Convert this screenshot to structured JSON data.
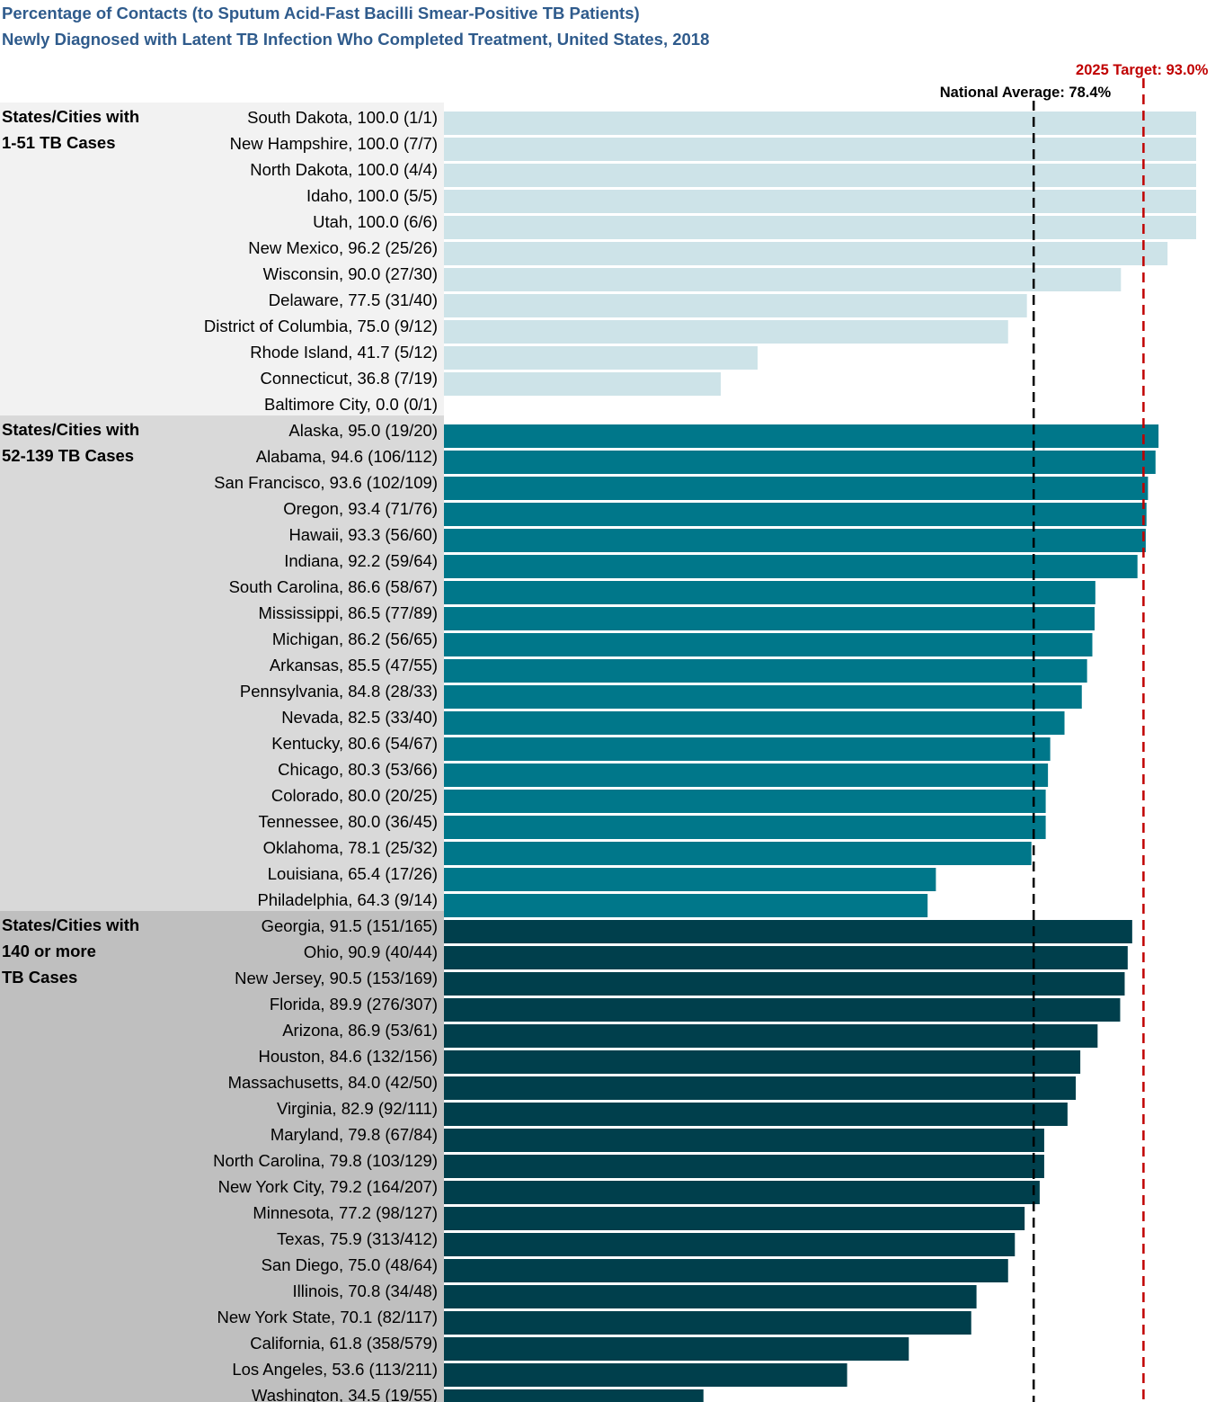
{
  "title_line1": "Percentage of Contacts (to Sputum Acid-Fast Bacilli Smear-Positive TB Patients)",
  "title_line2": "Newly Diagnosed with Latent TB Infection Who Completed Treatment, United States, 2018",
  "colors": {
    "group1": "#cde3e8",
    "group2": "#00778a",
    "group3": "#003f4c",
    "panel1": "#f2f2f2",
    "panel2": "#d9d9d9",
    "panel3": "#bfbfbf",
    "national": "#000000",
    "target": "#c00000"
  },
  "chart_data": {
    "type": "bar",
    "orientation": "horizontal",
    "title": "Percentage of Contacts (to Sputum Acid-Fast Bacilli Smear-Positive TB Patients) Newly Diagnosed with Latent TB Infection Who Completed Treatment, United States, 2018",
    "xlabel": "",
    "ylabel": "",
    "xlim": [
      0,
      100
    ],
    "reference_lines": [
      {
        "label": "National Average: 78.4%",
        "value": 78.4,
        "color": "#000000"
      },
      {
        "label": "2025 Target: 93.0%",
        "value": 93.0,
        "color": "#c00000"
      }
    ],
    "groups": [
      {
        "label_lines": [
          "States/Cities with",
          "1-51 TB Cases"
        ],
        "items": [
          {
            "name": "South Dakota",
            "value": 100.0,
            "fraction": "1/1"
          },
          {
            "name": "New Hampshire",
            "value": 100.0,
            "fraction": "7/7"
          },
          {
            "name": "North Dakota",
            "value": 100.0,
            "fraction": "4/4"
          },
          {
            "name": "Idaho",
            "value": 100.0,
            "fraction": "5/5"
          },
          {
            "name": "Utah",
            "value": 100.0,
            "fraction": "6/6"
          },
          {
            "name": "New Mexico",
            "value": 96.2,
            "fraction": "25/26"
          },
          {
            "name": "Wisconsin",
            "value": 90.0,
            "fraction": "27/30"
          },
          {
            "name": "Delaware",
            "value": 77.5,
            "fraction": "31/40"
          },
          {
            "name": "District of Columbia",
            "value": 75.0,
            "fraction": "9/12"
          },
          {
            "name": "Rhode Island",
            "value": 41.7,
            "fraction": "5/12"
          },
          {
            "name": "Connecticut",
            "value": 36.8,
            "fraction": "7/19"
          },
          {
            "name": "Baltimore City",
            "value": 0.0,
            "fraction": "0/1"
          }
        ]
      },
      {
        "label_lines": [
          "States/Cities with",
          "52-139 TB Cases"
        ],
        "items": [
          {
            "name": "Alaska",
            "value": 95.0,
            "fraction": "19/20"
          },
          {
            "name": "Alabama",
            "value": 94.6,
            "fraction": "106/112"
          },
          {
            "name": "San Francisco",
            "value": 93.6,
            "fraction": "102/109"
          },
          {
            "name": "Oregon",
            "value": 93.4,
            "fraction": "71/76"
          },
          {
            "name": "Hawaii",
            "value": 93.3,
            "fraction": "56/60"
          },
          {
            "name": "Indiana",
            "value": 92.2,
            "fraction": "59/64"
          },
          {
            "name": "South Carolina",
            "value": 86.6,
            "fraction": "58/67"
          },
          {
            "name": "Mississippi",
            "value": 86.5,
            "fraction": "77/89"
          },
          {
            "name": "Michigan",
            "value": 86.2,
            "fraction": "56/65"
          },
          {
            "name": "Arkansas",
            "value": 85.5,
            "fraction": "47/55"
          },
          {
            "name": "Pennsylvania",
            "value": 84.8,
            "fraction": "28/33"
          },
          {
            "name": "Nevada",
            "value": 82.5,
            "fraction": "33/40"
          },
          {
            "name": "Kentucky",
            "value": 80.6,
            "fraction": "54/67"
          },
          {
            "name": "Chicago",
            "value": 80.3,
            "fraction": "53/66"
          },
          {
            "name": "Colorado",
            "value": 80.0,
            "fraction": "20/25"
          },
          {
            "name": "Tennessee",
            "value": 80.0,
            "fraction": "36/45"
          },
          {
            "name": "Oklahoma",
            "value": 78.1,
            "fraction": "25/32"
          },
          {
            "name": "Louisiana",
            "value": 65.4,
            "fraction": "17/26"
          },
          {
            "name": "Philadelphia",
            "value": 64.3,
            "fraction": "9/14"
          }
        ]
      },
      {
        "label_lines": [
          "States/Cities with",
          "140 or more",
          "TB Cases"
        ],
        "items": [
          {
            "name": "Georgia",
            "value": 91.5,
            "fraction": "151/165"
          },
          {
            "name": "Ohio",
            "value": 90.9,
            "fraction": "40/44"
          },
          {
            "name": "New Jersey",
            "value": 90.5,
            "fraction": "153/169"
          },
          {
            "name": "Florida",
            "value": 89.9,
            "fraction": "276/307"
          },
          {
            "name": "Arizona",
            "value": 86.9,
            "fraction": "53/61"
          },
          {
            "name": "Houston",
            "value": 84.6,
            "fraction": "132/156"
          },
          {
            "name": "Massachusetts",
            "value": 84.0,
            "fraction": "42/50"
          },
          {
            "name": "Virginia",
            "value": 82.9,
            "fraction": "92/111"
          },
          {
            "name": "Maryland",
            "value": 79.8,
            "fraction": "67/84"
          },
          {
            "name": "North Carolina",
            "value": 79.8,
            "fraction": "103/129"
          },
          {
            "name": "New York City",
            "value": 79.2,
            "fraction": "164/207"
          },
          {
            "name": "Minnesota",
            "value": 77.2,
            "fraction": "98/127"
          },
          {
            "name": "Texas",
            "value": 75.9,
            "fraction": "313/412"
          },
          {
            "name": "San Diego",
            "value": 75.0,
            "fraction": "48/64"
          },
          {
            "name": "Illinois",
            "value": 70.8,
            "fraction": "34/48"
          },
          {
            "name": "New York State",
            "value": 70.1,
            "fraction": "82/117"
          },
          {
            "name": "California",
            "value": 61.8,
            "fraction": "358/579"
          },
          {
            "name": "Los Angeles",
            "value": 53.6,
            "fraction": "113/211"
          },
          {
            "name": "Washington",
            "value": 34.5,
            "fraction": "19/55"
          }
        ]
      }
    ]
  }
}
